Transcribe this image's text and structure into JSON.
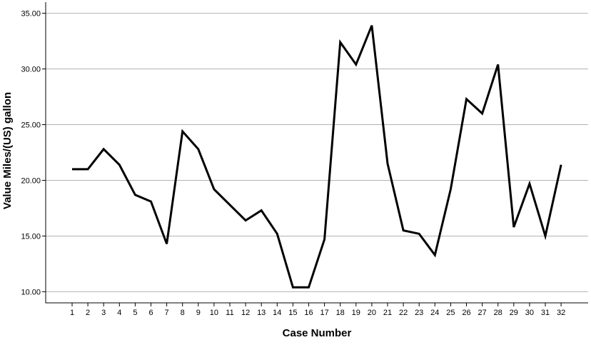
{
  "chart_data": {
    "type": "line",
    "xlabel": "Case Number",
    "ylabel": "Value Miles/(US) gallon",
    "ylim": [
      9,
      36
    ],
    "yticks": [
      "10.00",
      "15.00",
      "20.00",
      "25.00",
      "30.00",
      "35.00"
    ],
    "ytick_values": [
      10,
      15,
      20,
      25,
      30,
      35
    ],
    "grid": "horizontal",
    "line_color": "#000000",
    "grid_color": "#b3b3b3",
    "x": [
      "1",
      "2",
      "3",
      "4",
      "5",
      "6",
      "7",
      "8",
      "9",
      "10",
      "11",
      "12",
      "13",
      "14",
      "15",
      "16",
      "17",
      "18",
      "19",
      "20",
      "21",
      "22",
      "23",
      "24",
      "25",
      "26",
      "27",
      "28",
      "29",
      "30",
      "31",
      "32"
    ],
    "values": [
      21.0,
      21.0,
      22.8,
      21.4,
      18.7,
      18.1,
      14.3,
      24.4,
      22.8,
      19.2,
      17.8,
      16.4,
      17.3,
      15.2,
      10.4,
      10.4,
      14.7,
      32.4,
      30.4,
      33.9,
      21.5,
      15.5,
      15.2,
      13.3,
      19.2,
      27.3,
      26.0,
      30.4,
      15.8,
      19.7,
      15.0,
      21.4
    ]
  }
}
